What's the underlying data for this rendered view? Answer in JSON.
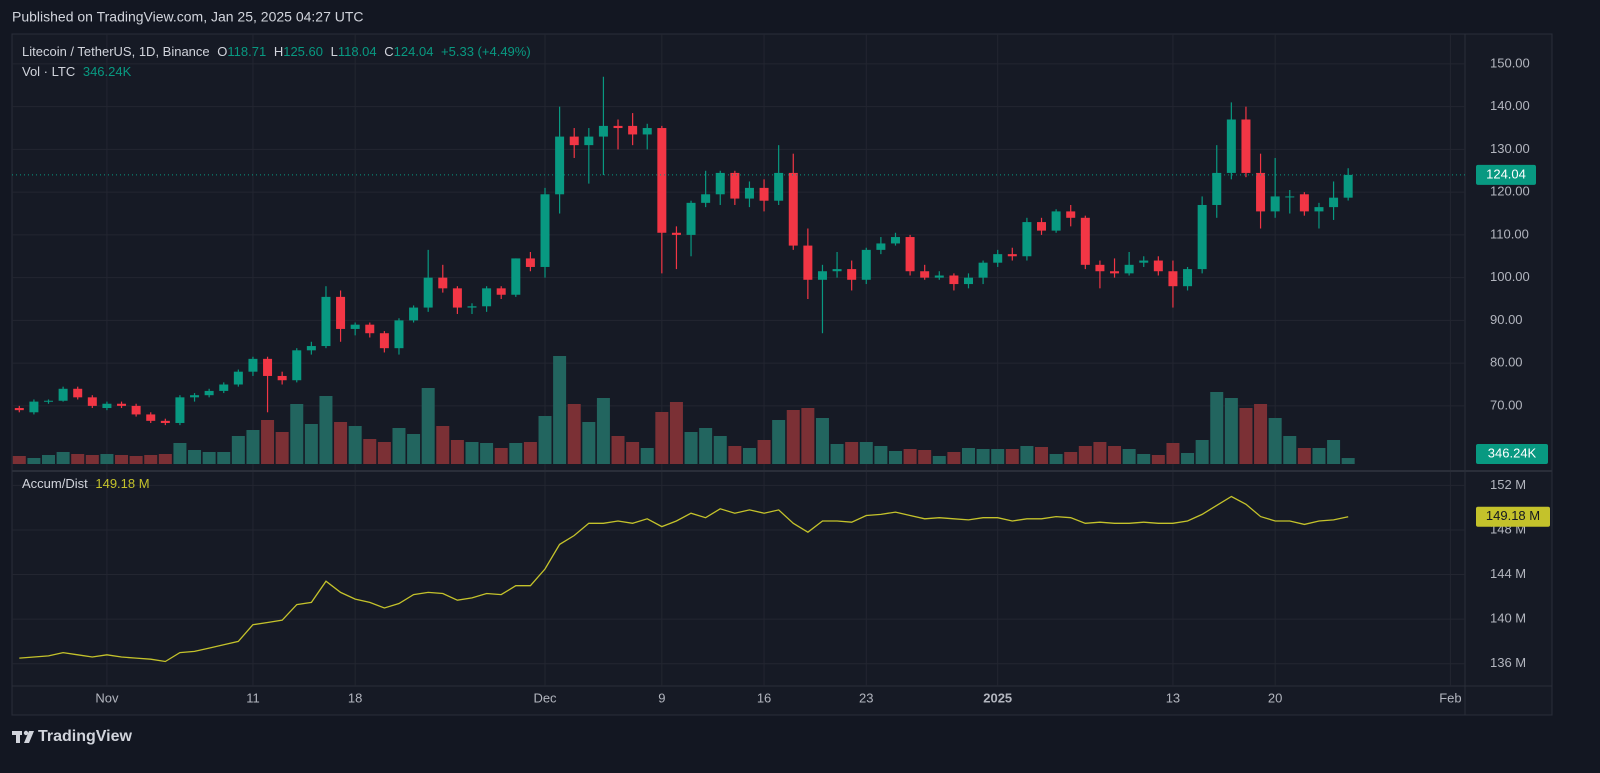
{
  "header": {
    "published": "Published on TradingView.com, Jan 25, 2025 04:27 UTC"
  },
  "footer": {
    "brand": "TradingView"
  },
  "chart_data": [
    {
      "type": "candlestick",
      "title": "Litecoin / TetherUS, 1D, Binance",
      "legend": {
        "o": "O",
        "open": "118.71",
        "h": "H",
        "high": "125.60",
        "l": "L",
        "low": "118.04",
        "c": "C",
        "close": "124.04",
        "change": "+5.33 (+4.49%)"
      },
      "last_price_label": "124.04",
      "up_color": "#089981",
      "down_color": "#f23645",
      "x": [
        "2024-10-26",
        "2024-10-27",
        "2024-10-28",
        "2024-10-29",
        "2024-10-30",
        "2024-10-31",
        "2024-11-01",
        "2024-11-02",
        "2024-11-03",
        "2024-11-04",
        "2024-11-05",
        "2024-11-06",
        "2024-11-07",
        "2024-11-08",
        "2024-11-09",
        "2024-11-10",
        "2024-11-11",
        "2024-11-12",
        "2024-11-13",
        "2024-11-14",
        "2024-11-15",
        "2024-11-16",
        "2024-11-17",
        "2024-11-18",
        "2024-11-19",
        "2024-11-20",
        "2024-11-21",
        "2024-11-22",
        "2024-11-23",
        "2024-11-24",
        "2024-11-25",
        "2024-11-26",
        "2024-11-27",
        "2024-11-28",
        "2024-11-29",
        "2024-11-30",
        "2024-12-01",
        "2024-12-02",
        "2024-12-03",
        "2024-12-04",
        "2024-12-05",
        "2024-12-06",
        "2024-12-07",
        "2024-12-08",
        "2024-12-09",
        "2024-12-10",
        "2024-12-11",
        "2024-12-12",
        "2024-12-13",
        "2024-12-14",
        "2024-12-15",
        "2024-12-16",
        "2024-12-17",
        "2024-12-18",
        "2024-12-19",
        "2024-12-20",
        "2024-12-21",
        "2024-12-22",
        "2024-12-23",
        "2024-12-24",
        "2024-12-25",
        "2024-12-26",
        "2024-12-27",
        "2024-12-28",
        "2024-12-29",
        "2024-12-30",
        "2024-12-31",
        "2025-01-01",
        "2025-01-02",
        "2025-01-03",
        "2025-01-04",
        "2025-01-05",
        "2025-01-06",
        "2025-01-07",
        "2025-01-08",
        "2025-01-09",
        "2025-01-10",
        "2025-01-11",
        "2025-01-12",
        "2025-01-13",
        "2025-01-14",
        "2025-01-15",
        "2025-01-16",
        "2025-01-17",
        "2025-01-18",
        "2025-01-19",
        "2025-01-20",
        "2025-01-21",
        "2025-01-22",
        "2025-01-23",
        "2025-01-24",
        "2025-01-25"
      ],
      "open": [
        69.5,
        68.5,
        71,
        71.2,
        74,
        72,
        69.5,
        70.5,
        70,
        68,
        66.5,
        66,
        72,
        72.5,
        73.5,
        75,
        78,
        81,
        77,
        76,
        83,
        84,
        95.5,
        88,
        89,
        87,
        83.5,
        90,
        93,
        100,
        97.5,
        93,
        93.3,
        97.5,
        96,
        104.5,
        102.5,
        119.5,
        133,
        131,
        133,
        135.5,
        135.5,
        133.5,
        135,
        110.5,
        110,
        117.5,
        119.5,
        124.5,
        118.5,
        121,
        118,
        124.5,
        107.5,
        99.5,
        101.5,
        102,
        99.5,
        106.5,
        108,
        109.5,
        101.5,
        100,
        100.5,
        98.5,
        100,
        103.5,
        105.5,
        105,
        113,
        111,
        115.5,
        114,
        103,
        101.5,
        101,
        103.5,
        104,
        101.5,
        98,
        102,
        117,
        124.5,
        137,
        124.5,
        115.5,
        119,
        119.5,
        115.5,
        116.5,
        118.71
      ],
      "high": [
        70,
        71.5,
        71.5,
        74.5,
        74.5,
        72.5,
        71,
        71,
        70.5,
        68.5,
        67,
        72.5,
        73,
        74,
        75.5,
        78.5,
        81.5,
        81.5,
        78,
        83.5,
        85,
        98,
        97,
        89.5,
        89.5,
        87.5,
        90.5,
        93.5,
        106.5,
        103,
        98,
        94,
        98,
        98,
        104.5,
        106,
        121,
        140,
        135,
        135,
        147,
        137,
        138.5,
        136,
        135.5,
        112,
        118,
        125,
        125,
        125,
        122.5,
        123,
        131,
        129,
        111.5,
        103,
        106,
        104,
        107,
        109.5,
        110.5,
        110,
        103,
        101.5,
        101,
        101,
        104,
        106.5,
        107,
        114,
        114,
        116,
        117,
        114.5,
        104,
        104.5,
        106,
        105,
        105,
        104,
        102.5,
        119,
        131,
        141,
        140,
        129,
        128,
        120.5,
        120,
        117.5,
        122.5,
        125.6
      ],
      "low": [
        68.5,
        68,
        70.5,
        71,
        71.5,
        69.5,
        69,
        69.5,
        67.5,
        66,
        65.5,
        65.5,
        71,
        72,
        73,
        74.5,
        77,
        68.5,
        75,
        75.5,
        82,
        83.5,
        85,
        86.5,
        86,
        82.5,
        82,
        89.5,
        92,
        96.5,
        91.5,
        91.5,
        92,
        95,
        95.5,
        101.5,
        100,
        115,
        128,
        122,
        124,
        130,
        131,
        130,
        101,
        102,
        105,
        116.5,
        117,
        117,
        116.5,
        115.5,
        117,
        106.5,
        95,
        87,
        100,
        97,
        98.5,
        105.5,
        107.5,
        100.5,
        99.5,
        99.5,
        97,
        97.5,
        98.5,
        102.5,
        104,
        104,
        110,
        110.5,
        112,
        102,
        97.5,
        100,
        100.5,
        102.5,
        100.5,
        93,
        97,
        101,
        114,
        123,
        123.5,
        111.5,
        114,
        115,
        114.5,
        111.5,
        113.5,
        118.04
      ],
      "close": [
        69,
        71,
        71.2,
        74,
        72,
        70,
        70.5,
        70,
        68,
        66.5,
        66,
        72,
        72.5,
        73.5,
        75,
        78,
        81,
        77,
        76,
        83,
        84,
        95.5,
        88,
        89,
        87,
        83.5,
        90,
        93,
        100,
        97.5,
        93,
        93.3,
        97.5,
        96,
        104.5,
        102.5,
        119.5,
        133,
        131,
        133,
        135.5,
        135,
        133.5,
        135,
        110.5,
        110,
        117.5,
        119.5,
        124.5,
        118.5,
        121,
        118,
        124.5,
        107.5,
        99.5,
        101.5,
        102,
        99.5,
        106.5,
        108,
        109.5,
        101.5,
        100,
        100.5,
        98.5,
        100,
        103.5,
        105.5,
        105,
        113,
        111,
        115.5,
        114,
        103,
        101.5,
        101,
        103,
        104,
        101.5,
        98,
        102,
        117,
        124.5,
        137,
        124.5,
        115.5,
        119,
        119,
        115.5,
        116.5,
        118.71,
        124.04
      ],
      "ylim": [
        55,
        157
      ],
      "yticks": [
        {
          "value": 70,
          "label": "70.00"
        },
        {
          "value": 80,
          "label": "80.00"
        },
        {
          "value": 90,
          "label": "90.00"
        },
        {
          "value": 100,
          "label": "100.00"
        },
        {
          "value": 110,
          "label": "110.00"
        },
        {
          "value": 120,
          "label": "120.00"
        },
        {
          "value": 130,
          "label": "130.00"
        },
        {
          "value": 140,
          "label": "140.00"
        },
        {
          "value": 150,
          "label": "150.00"
        }
      ],
      "xlim": [
        "2024-10-25T12:00",
        "2025-02-02T00:00"
      ],
      "xticks": [
        {
          "value": "2024-11-01",
          "label": "Nov"
        },
        {
          "value": "2024-11-11",
          "label": "11"
        },
        {
          "value": "2024-11-18",
          "label": "18"
        },
        {
          "value": "2024-12-01",
          "label": "Dec"
        },
        {
          "value": "2024-12-09",
          "label": "9"
        },
        {
          "value": "2024-12-16",
          "label": "16"
        },
        {
          "value": "2024-12-23",
          "label": "23"
        },
        {
          "value": "2025-01-01",
          "label": "2025"
        },
        {
          "value": "2025-01-13",
          "label": "13"
        },
        {
          "value": "2025-01-20",
          "label": "20"
        },
        {
          "value": "2025-02-01",
          "label": "Feb"
        }
      ],
      "grid": true
    },
    {
      "type": "bar",
      "title": "Vol · LTC",
      "last_value_label": "346.24K",
      "up_color": "#22655f",
      "down_color": "#7b3035",
      "values": [
        464,
        348,
        522,
        696,
        580,
        522,
        580,
        522,
        464,
        522,
        580,
        1218,
        812,
        696,
        696,
        1624,
        1972,
        2552,
        1856,
        3480,
        2320,
        3944,
        2436,
        2204,
        1450,
        1276,
        2088,
        1740,
        4408,
        2204,
        1392,
        1276,
        1218,
        928,
        1218,
        1276,
        2784,
        6264,
        3480,
        2436,
        3828,
        1624,
        1276,
        928,
        3016,
        3596,
        1856,
        2088,
        1624,
        1044,
        928,
        1392,
        2552,
        3132,
        3248,
        2668,
        1160,
        1276,
        1276,
        1044,
        754,
        870,
        812,
        464,
        696,
        928,
        870,
        870,
        870,
        1044,
        986,
        580,
        696,
        1044,
        1276,
        1044,
        870,
        580,
        522,
        1218,
        638,
        1392,
        4176,
        3828,
        3248,
        3480,
        2668,
        1624,
        928,
        928,
        1392,
        346.24
      ]
    },
    {
      "type": "line",
      "title": "Accum/Dist",
      "last_value_label": "149.18 M",
      "color": "#c4c22b",
      "values": [
        136.5,
        136.6,
        136.7,
        137.0,
        136.8,
        136.6,
        136.8,
        136.6,
        136.5,
        136.4,
        136.2,
        137.0,
        137.1,
        137.4,
        137.7,
        138.0,
        139.5,
        139.7,
        139.9,
        141.3,
        141.5,
        143.4,
        142.4,
        141.8,
        141.5,
        141.0,
        141.4,
        142.2,
        142.4,
        142.3,
        141.7,
        141.9,
        142.3,
        142.2,
        143.0,
        143.0,
        144.5,
        146.7,
        147.5,
        148.6,
        148.6,
        148.8,
        148.6,
        149.0,
        148.3,
        148.8,
        149.5,
        149.1,
        149.9,
        149.5,
        149.8,
        149.5,
        149.8,
        148.6,
        147.8,
        148.8,
        148.8,
        148.7,
        149.3,
        149.4,
        149.6,
        149.3,
        149.0,
        149.1,
        149.0,
        148.9,
        149.1,
        149.1,
        148.8,
        149.0,
        149.0,
        149.2,
        149.1,
        148.6,
        148.7,
        148.6,
        148.6,
        148.7,
        148.6,
        148.6,
        148.8,
        149.4,
        150.2,
        151.0,
        150.3,
        149.2,
        148.8,
        148.8,
        148.5,
        148.8,
        148.9,
        149.18
      ],
      "ylim": [
        134,
        153.2
      ],
      "yticks": [
        {
          "value": 136,
          "label": "136 M"
        },
        {
          "value": 140,
          "label": "140 M"
        },
        {
          "value": 144,
          "label": "144 M"
        },
        {
          "value": 148,
          "label": "148 M"
        },
        {
          "value": 152,
          "label": "152 M"
        }
      ]
    }
  ]
}
